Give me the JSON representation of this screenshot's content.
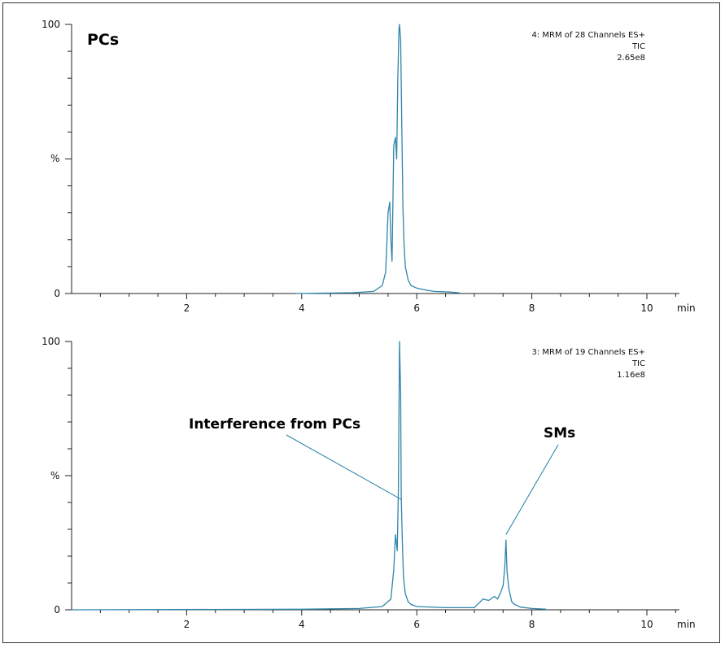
{
  "colors": {
    "trace": "#2e86ab",
    "axis": "#222222",
    "frame": "#333333"
  },
  "chart_data": [
    {
      "type": "line",
      "title": "PCs",
      "info_lines": [
        "4: MRM of 28 Channels ES+",
        "TIC",
        "2.65e8"
      ],
      "x_unit_label": "min",
      "y_unit_label": "%",
      "xlim": [
        0,
        11
      ],
      "ylim": [
        0,
        100
      ],
      "x_ticks": [
        2,
        4,
        6,
        8,
        10
      ],
      "x_tick_labels": [
        "2",
        "4",
        "6",
        "8",
        "10"
      ],
      "y_ticks": [
        0,
        100
      ],
      "y_tick_labels": [
        "0",
        "100"
      ],
      "y_pct_tick": 50,
      "series": [
        {
          "x": [
            3.9,
            4.9,
            5.25,
            5.4,
            5.46,
            5.5,
            5.53,
            5.55,
            5.57,
            5.6,
            5.63,
            5.65,
            5.67,
            5.69,
            5.7,
            5.72,
            5.74,
            5.76,
            5.78,
            5.8,
            5.85,
            5.9,
            6.0,
            6.1,
            6.3,
            6.6,
            6.75
          ],
          "y": [
            0,
            0.3,
            0.8,
            3,
            8,
            30,
            34,
            20,
            12,
            55,
            58,
            50,
            80,
            98,
            100,
            94,
            62,
            32,
            18,
            10,
            5,
            3,
            2,
            1.5,
            0.8,
            0.5,
            0.2
          ]
        }
      ]
    },
    {
      "type": "line",
      "title": "",
      "info_lines": [
        "3: MRM of 19 Channels ES+",
        "TIC",
        "1.16e8"
      ],
      "x_unit_label": "min",
      "y_unit_label": "%",
      "xlim": [
        0,
        11
      ],
      "ylim": [
        0,
        100
      ],
      "x_ticks": [
        2,
        4,
        6,
        8,
        10
      ],
      "x_tick_labels": [
        "2",
        "4",
        "6",
        "8",
        "10"
      ],
      "y_ticks": [
        0,
        100
      ],
      "y_tick_labels": [
        "0",
        "100"
      ],
      "y_pct_tick": 50,
      "annotations": [
        {
          "text": "Interference from PCs",
          "x": 5.74,
          "y": 41
        },
        {
          "text": "SMs",
          "x": 7.55,
          "y": 28
        }
      ],
      "series": [
        {
          "x": [
            -1,
            4.0,
            5.0,
            5.4,
            5.55,
            5.6,
            5.63,
            5.66,
            5.68,
            5.7,
            5.72,
            5.73,
            5.75,
            5.77,
            5.8,
            5.85,
            5.9,
            6.0,
            6.5,
            7.0,
            7.15,
            7.25,
            7.35,
            7.4,
            7.45,
            7.5,
            7.53,
            7.55,
            7.57,
            7.6,
            7.65,
            7.7,
            7.8,
            8.0,
            8.25
          ],
          "y": [
            0,
            0.2,
            0.5,
            1.2,
            4,
            15,
            28,
            22,
            45,
            100,
            80,
            42,
            25,
            12,
            6,
            3,
            2,
            1.2,
            0.8,
            0.8,
            4,
            3.5,
            5,
            4,
            6,
            9,
            16,
            26,
            14,
            8,
            3,
            2,
            1,
            0.5,
            0.2
          ]
        }
      ]
    }
  ]
}
